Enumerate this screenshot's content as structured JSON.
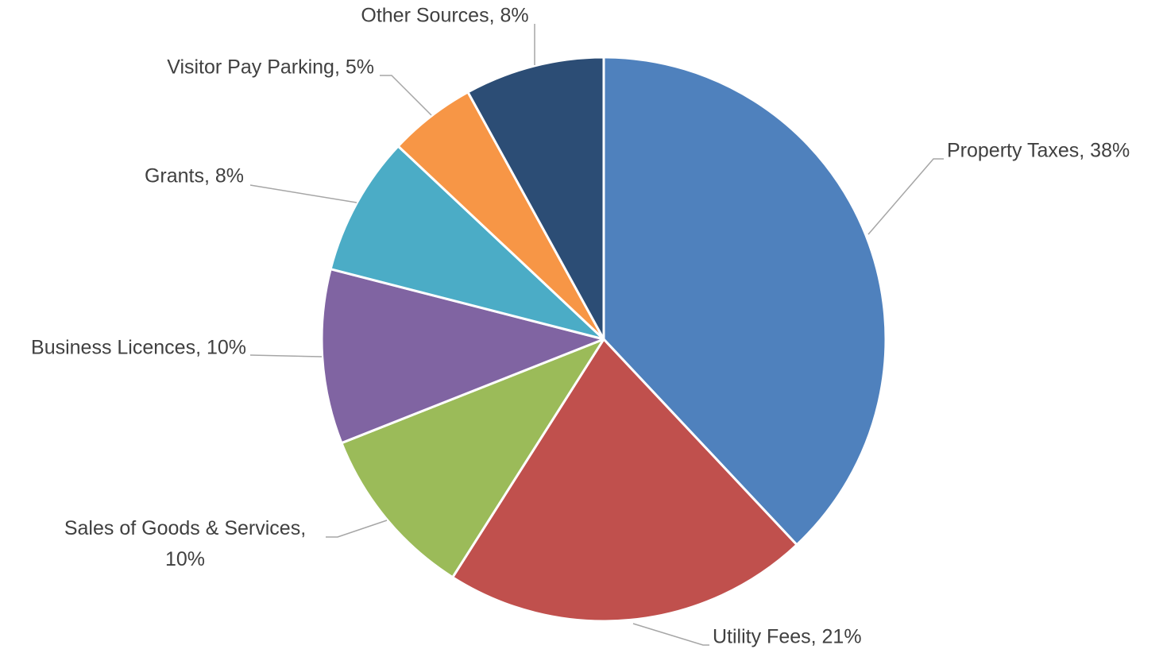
{
  "chart_data": {
    "type": "pie",
    "categories": [
      "Property Taxes",
      "Utility Fees",
      "Sales of Goods & Services",
      "Business Licences",
      "Grants",
      "Visitor Pay Parking",
      "Other Sources"
    ],
    "values": [
      38,
      21,
      10,
      10,
      8,
      5,
      8
    ],
    "value_labels": [
      "Property Taxes, 38%",
      "Utility Fees, 21%",
      "Sales of Goods & Services, 10%",
      "Business Licences, 10%",
      "Grants, 8%",
      "Visitor Pay Parking, 5%",
      "Other Sources, 8%"
    ],
    "colors": [
      "#4f81bd",
      "#c0504d",
      "#9bbb59",
      "#8064a2",
      "#4bacc6",
      "#f79646",
      "#2c4d75"
    ]
  }
}
